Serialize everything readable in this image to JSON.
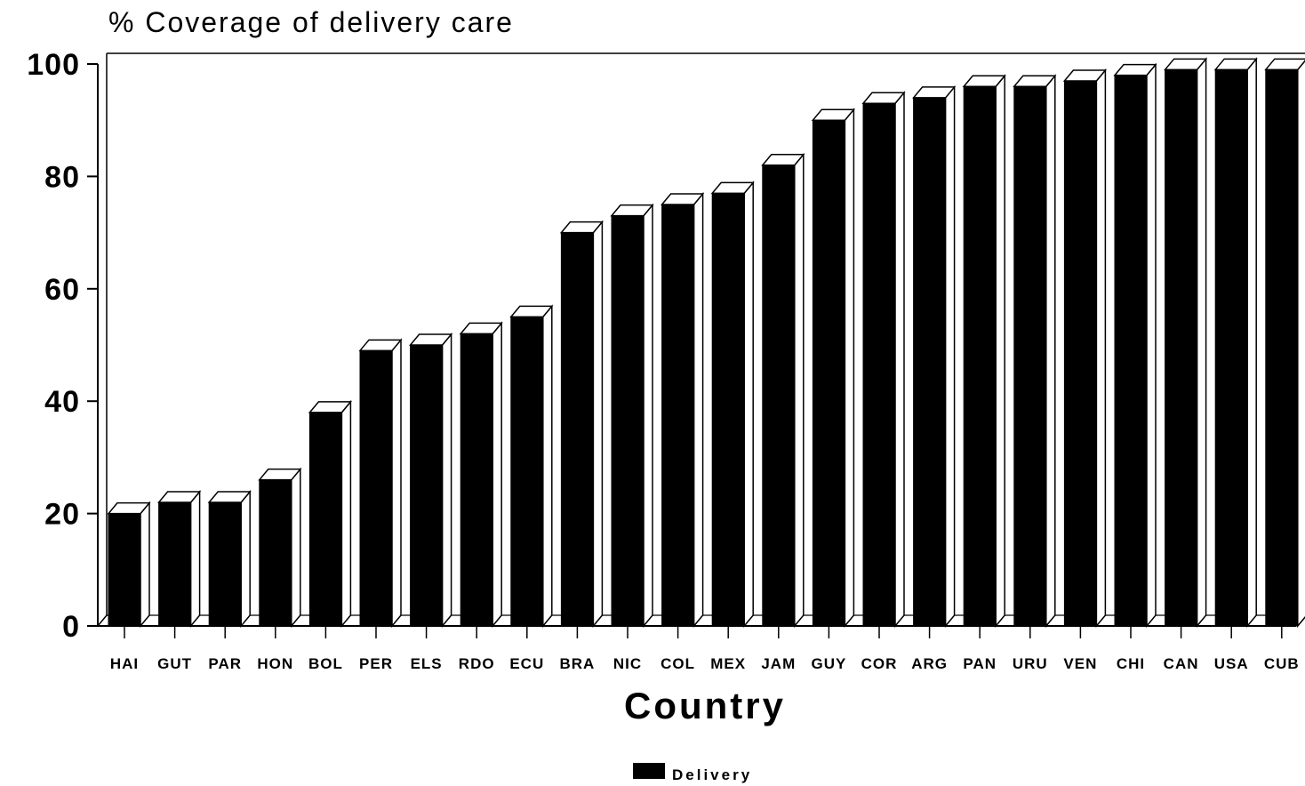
{
  "chart_data": {
    "type": "bar",
    "title": "% Coverage of delivery care",
    "xlabel": "Country",
    "ylabel": "",
    "ylim": [
      0,
      100
    ],
    "yticks": [
      0,
      20,
      40,
      60,
      80,
      100
    ],
    "categories": [
      "HAI",
      "GUT",
      "PAR",
      "HON",
      "BOL",
      "PER",
      "ELS",
      "RDO",
      "ECU",
      "BRA",
      "NIC",
      "COL",
      "MEX",
      "JAM",
      "GUY",
      "COR",
      "ARG",
      "PAN",
      "URU",
      "VEN",
      "CHI",
      "CAN",
      "USA",
      "CUB"
    ],
    "series": [
      {
        "name": "Delivery",
        "color": "#000000",
        "values": [
          20,
          22,
          22,
          26,
          38,
          49,
          50,
          52,
          55,
          70,
          73,
          75,
          77,
          82,
          90,
          93,
          94,
          96,
          96,
          97,
          98,
          99,
          99,
          99
        ]
      }
    ],
    "legend_position": "bottom-center",
    "grid": false,
    "style": "3d"
  }
}
